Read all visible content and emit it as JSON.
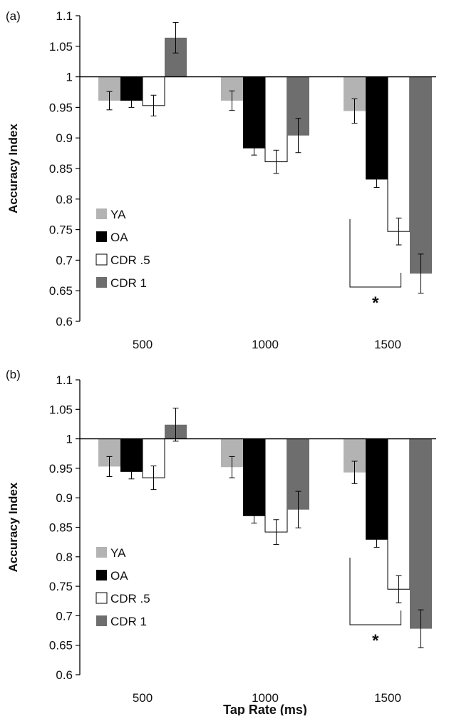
{
  "figure": {
    "xlabel": "Tap Rate (ms)"
  },
  "legend": [
    {
      "name": "YA",
      "color": "#b3b3b3"
    },
    {
      "name": "OA",
      "color": "#000000"
    },
    {
      "name": "CDR .5",
      "color": "#ffffff"
    },
    {
      "name": "CDR 1",
      "color": "#6e6e6e"
    }
  ],
  "chart_data": [
    {
      "type": "bar",
      "panel_label": "(a)",
      "title": "",
      "ylabel": "Accuracy Index",
      "xlabel": "",
      "ylim": [
        0.6,
        1.1
      ],
      "yticks": [
        0.6,
        0.65,
        0.7,
        0.75,
        0.8,
        0.85,
        0.9,
        0.95,
        1,
        1.05,
        1.1
      ],
      "ytick_labels": [
        "0.6",
        "0.65",
        "0.7",
        "0.75",
        "0.8",
        "0.85",
        "0.9",
        "0.95",
        "1",
        "1.05",
        "1.1"
      ],
      "baseline": 1,
      "categories": [
        "500",
        "1000",
        "1500"
      ],
      "series": [
        {
          "name": "YA",
          "values": [
            0.961,
            0.961,
            0.944
          ],
          "errors": [
            0.015,
            0.016,
            0.02
          ]
        },
        {
          "name": "OA",
          "values": [
            0.961,
            0.883,
            0.832
          ],
          "errors": [
            0.011,
            0.011,
            0.013
          ]
        },
        {
          "name": "CDR .5",
          "values": [
            0.953,
            0.861,
            0.747
          ],
          "errors": [
            0.017,
            0.019,
            0.022
          ]
        },
        {
          "name": "CDR 1",
          "values": [
            1.064,
            0.904,
            0.678
          ],
          "errors": [
            0.025,
            0.028,
            0.032
          ]
        }
      ],
      "annotations": [
        {
          "text": "*"
        }
      ],
      "legend_position": "left"
    },
    {
      "type": "bar",
      "panel_label": "(b)",
      "title": "",
      "ylabel": "Accuracy Index",
      "xlabel": "Tap Rate (ms)",
      "ylim": [
        0.6,
        1.1
      ],
      "yticks": [
        0.6,
        0.65,
        0.7,
        0.75,
        0.8,
        0.85,
        0.9,
        0.95,
        1,
        1.05,
        1.1
      ],
      "ytick_labels": [
        "0.6",
        "0.65",
        "0.7",
        "0.75",
        "0.8",
        "0.85",
        "0.9",
        "0.95",
        "1",
        "1.05",
        "1.1"
      ],
      "baseline": 1,
      "categories": [
        "500",
        "1000",
        "1500"
      ],
      "series": [
        {
          "name": "YA",
          "values": [
            0.953,
            0.952,
            0.943
          ],
          "errors": [
            0.017,
            0.018,
            0.019
          ]
        },
        {
          "name": "OA",
          "values": [
            0.944,
            0.869,
            0.829
          ],
          "errors": [
            0.012,
            0.012,
            0.013
          ]
        },
        {
          "name": "CDR .5",
          "values": [
            0.934,
            0.842,
            0.745
          ],
          "errors": [
            0.02,
            0.021,
            0.023
          ]
        },
        {
          "name": "CDR 1",
          "values": [
            1.024,
            0.88,
            0.678
          ],
          "errors": [
            0.028,
            0.031,
            0.032
          ]
        }
      ],
      "annotations": [
        {
          "text": "*"
        }
      ],
      "legend_position": "left"
    }
  ]
}
